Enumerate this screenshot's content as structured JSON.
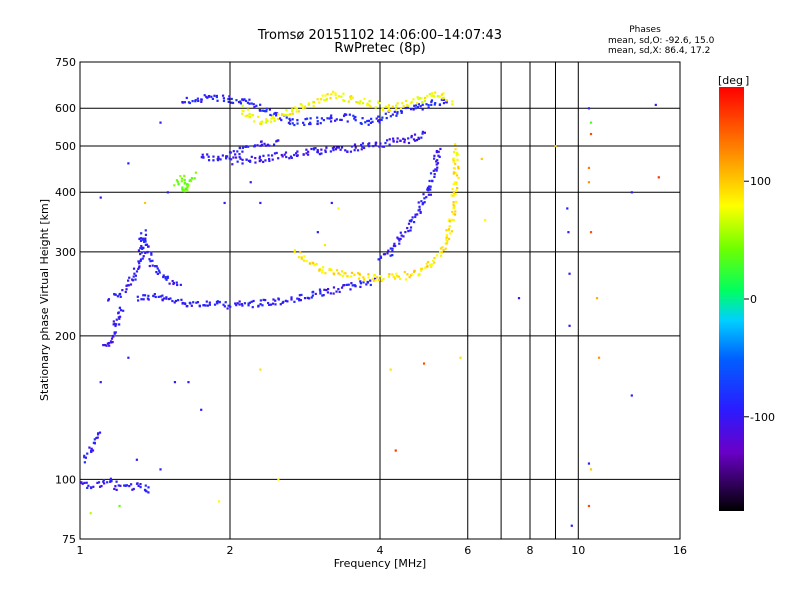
{
  "chart_data": {
    "type": "scatter",
    "title": "Tromsø 20151102 14:06:00–14:07:43",
    "subtitle": "RwPretec (8p)",
    "xlabel": "Frequency [MHz]",
    "ylabel": "Stationary phase Virtual Height [km]",
    "x_scale": "log",
    "y_scale": "log",
    "xlim": [
      1,
      16
    ],
    "ylim": [
      75,
      750
    ],
    "x_ticks": [
      1,
      2,
      4,
      6,
      8,
      10,
      16
    ],
    "x_tick_labels": [
      "1",
      "2",
      "4",
      "6",
      "8",
      "10",
      "16"
    ],
    "x_gridlines": [
      2,
      4,
      6,
      7,
      8,
      9,
      10
    ],
    "y_ticks": [
      75,
      100,
      200,
      300,
      400,
      500,
      600,
      750
    ],
    "y_tick_labels": [
      "75",
      "100",
      "200",
      "300",
      "400",
      "500",
      "600",
      "750"
    ],
    "y_gridlines": [
      100,
      200,
      300,
      400,
      500,
      600
    ],
    "grid": true,
    "stats": {
      "heading": "Phases",
      "line_o": "mean, sd,O: -92.6, 15.0",
      "line_x": "mean, sd,X:  86.4, 17.2"
    },
    "colorbar": {
      "label": "[deg",
      "min": -180,
      "max": 180,
      "ticks": [
        100,
        0,
        -100
      ],
      "tick_labels": [
        "100",
        "0",
        "-100"
      ]
    },
    "traces": [
      {
        "name": "",
        "phase": -95,
        "points": [
          [
            1.3,
            240
          ],
          [
            1.4,
            242
          ],
          [
            1.5,
            238
          ],
          [
            1.6,
            235
          ],
          [
            1.8,
            233
          ],
          [
            2.0,
            232
          ],
          [
            2.2,
            233
          ],
          [
            2.5,
            236
          ],
          [
            2.8,
            240
          ],
          [
            3.0,
            245
          ],
          [
            3.3,
            250
          ],
          [
            3.6,
            256
          ],
          [
            3.9,
            262
          ]
        ]
      },
      {
        "name": "",
        "phase": -95,
        "points": [
          [
            1.15,
            240
          ],
          [
            1.2,
            245
          ],
          [
            1.25,
            255
          ],
          [
            1.28,
            265
          ],
          [
            1.3,
            275
          ],
          [
            1.32,
            290
          ],
          [
            1.33,
            310
          ],
          [
            1.34,
            330
          ],
          [
            1.35,
            310
          ],
          [
            1.38,
            290
          ],
          [
            1.42,
            275
          ],
          [
            1.5,
            262
          ],
          [
            1.6,
            255
          ]
        ]
      },
      {
        "name": "",
        "phase": -98,
        "points": [
          [
            1.12,
            190
          ],
          [
            1.14,
            192
          ],
          [
            1.16,
            198
          ],
          [
            1.18,
            208
          ],
          [
            1.2,
            220
          ],
          [
            1.22,
            232
          ]
        ]
      },
      {
        "name": "",
        "phase": -95,
        "points": [
          [
            4.0,
            290
          ],
          [
            4.2,
            300
          ],
          [
            4.4,
            320
          ],
          [
            4.6,
            345
          ],
          [
            4.8,
            370
          ],
          [
            4.9,
            385
          ],
          [
            5.0,
            400
          ],
          [
            5.1,
            430
          ],
          [
            5.2,
            470
          ],
          [
            5.25,
            500
          ]
        ]
      },
      {
        "name": "",
        "phase": 88,
        "points": [
          [
            2.7,
            300
          ],
          [
            2.9,
            285
          ],
          [
            3.1,
            275
          ],
          [
            3.3,
            270
          ],
          [
            3.6,
            266
          ],
          [
            4.0,
            264
          ],
          [
            4.4,
            266
          ],
          [
            4.8,
            272
          ],
          [
            5.1,
            285
          ],
          [
            5.3,
            300
          ],
          [
            5.45,
            320
          ],
          [
            5.55,
            345
          ],
          [
            5.62,
            370
          ],
          [
            5.66,
            400
          ],
          [
            5.68,
            430
          ],
          [
            5.68,
            470
          ],
          [
            5.64,
            500
          ]
        ]
      },
      {
        "name": "",
        "phase": -100,
        "points": [
          [
            2.0,
            465
          ],
          [
            2.3,
            470
          ],
          [
            2.6,
            478
          ],
          [
            3.0,
            488
          ],
          [
            3.5,
            495
          ],
          [
            4.0,
            505
          ],
          [
            4.5,
            515
          ],
          [
            5.0,
            530
          ]
        ]
      },
      {
        "name": "",
        "phase": -90,
        "points": [
          [
            1.6,
            620
          ],
          [
            1.8,
            630
          ],
          [
            2.1,
            625
          ],
          [
            2.4,
            590
          ],
          [
            2.7,
            560
          ],
          [
            3.0,
            565
          ],
          [
            3.4,
            575
          ],
          [
            3.8,
            560
          ],
          [
            4.3,
            590
          ],
          [
            5.0,
            610
          ],
          [
            5.5,
            630
          ]
        ]
      },
      {
        "name": "",
        "phase": 80,
        "points": [
          [
            2.1,
            600
          ],
          [
            2.2,
            580
          ],
          [
            2.3,
            560
          ],
          [
            3.2,
            640
          ],
          [
            3.6,
            625
          ],
          [
            4.2,
            600
          ],
          [
            5.2,
            640
          ],
          [
            5.6,
            620
          ]
        ]
      },
      {
        "name": "",
        "phase": 40,
        "points": [
          [
            1.55,
            420
          ],
          [
            1.6,
            430
          ],
          [
            1.65,
            410
          ],
          [
            1.6,
            400
          ],
          [
            1.7,
            440
          ]
        ]
      },
      {
        "name": "",
        "phase": -95,
        "points": [
          [
            1.0,
            98
          ],
          [
            1.05,
            97
          ],
          [
            1.1,
            98
          ],
          [
            1.15,
            99
          ],
          [
            1.2,
            96
          ],
          [
            1.3,
            97
          ],
          [
            1.4,
            95
          ]
        ]
      },
      {
        "name": "",
        "phase": -95,
        "points": [
          [
            1.02,
            110
          ],
          [
            1.05,
            115
          ],
          [
            1.08,
            120
          ],
          [
            1.1,
            125
          ]
        ]
      },
      {
        "name": "",
        "phase": -100,
        "points": [
          [
            1.75,
            480
          ],
          [
            1.9,
            470
          ],
          [
            2.2,
            500
          ],
          [
            2.5,
            510
          ]
        ]
      }
    ],
    "scatter_points": [
      {
        "x": 1.25,
        "y": 180,
        "phase": -95
      },
      {
        "x": 1.1,
        "y": 160,
        "phase": -95
      },
      {
        "x": 1.65,
        "y": 160,
        "phase": -95
      },
      {
        "x": 1.75,
        "y": 140,
        "phase": -95
      },
      {
        "x": 1.3,
        "y": 110,
        "phase": -95
      },
      {
        "x": 1.45,
        "y": 105,
        "phase": -95
      },
      {
        "x": 1.9,
        "y": 90,
        "phase": 80
      },
      {
        "x": 2.5,
        "y": 100,
        "phase": 80
      },
      {
        "x": 2.3,
        "y": 170,
        "phase": 90
      },
      {
        "x": 4.2,
        "y": 170,
        "phase": 90
      },
      {
        "x": 4.3,
        "y": 115,
        "phase": 160
      },
      {
        "x": 4.9,
        "y": 175,
        "phase": 150
      },
      {
        "x": 5.8,
        "y": 180,
        "phase": 90
      },
      {
        "x": 6.4,
        "y": 470,
        "phase": 100
      },
      {
        "x": 6.5,
        "y": 350,
        "phase": 80
      },
      {
        "x": 7.6,
        "y": 240,
        "phase": -95
      },
      {
        "x": 9.0,
        "y": 500,
        "phase": 100
      },
      {
        "x": 9.5,
        "y": 370,
        "phase": -95
      },
      {
        "x": 9.55,
        "y": 330,
        "phase": -95
      },
      {
        "x": 9.6,
        "y": 270,
        "phase": -95
      },
      {
        "x": 9.6,
        "y": 210,
        "phase": -95
      },
      {
        "x": 9.7,
        "y": 80,
        "phase": -95
      },
      {
        "x": 10.5,
        "y": 600,
        "phase": -95
      },
      {
        "x": 10.6,
        "y": 560,
        "phase": 30
      },
      {
        "x": 10.6,
        "y": 530,
        "phase": 150
      },
      {
        "x": 10.5,
        "y": 450,
        "phase": 130
      },
      {
        "x": 10.5,
        "y": 420,
        "phase": 120
      },
      {
        "x": 10.6,
        "y": 330,
        "phase": 150
      },
      {
        "x": 10.5,
        "y": 108,
        "phase": -95
      },
      {
        "x": 10.6,
        "y": 105,
        "phase": 100
      },
      {
        "x": 10.5,
        "y": 88,
        "phase": 150
      },
      {
        "x": 10.9,
        "y": 240,
        "phase": 110
      },
      {
        "x": 11.0,
        "y": 180,
        "phase": 120
      },
      {
        "x": 12.8,
        "y": 400,
        "phase": -95
      },
      {
        "x": 12.8,
        "y": 150,
        "phase": -95
      },
      {
        "x": 14.3,
        "y": 610,
        "phase": -95
      },
      {
        "x": 14.5,
        "y": 430,
        "phase": 160
      },
      {
        "x": 1.95,
        "y": 380,
        "phase": -95
      },
      {
        "x": 2.2,
        "y": 420,
        "phase": -95
      },
      {
        "x": 2.3,
        "y": 380,
        "phase": -95
      },
      {
        "x": 3.2,
        "y": 380,
        "phase": -95
      },
      {
        "x": 3.3,
        "y": 370,
        "phase": 80
      },
      {
        "x": 3.0,
        "y": 330,
        "phase": -95
      },
      {
        "x": 3.1,
        "y": 310,
        "phase": 90
      },
      {
        "x": 1.45,
        "y": 560,
        "phase": -95
      },
      {
        "x": 1.5,
        "y": 400,
        "phase": -95
      },
      {
        "x": 1.1,
        "y": 390,
        "phase": -95
      },
      {
        "x": 1.35,
        "y": 380,
        "phase": 100
      },
      {
        "x": 1.25,
        "y": 460,
        "phase": -95
      },
      {
        "x": 1.05,
        "y": 85,
        "phase": 60
      },
      {
        "x": 1.2,
        "y": 88,
        "phase": 40
      },
      {
        "x": 1.55,
        "y": 160,
        "phase": -95
      }
    ]
  }
}
